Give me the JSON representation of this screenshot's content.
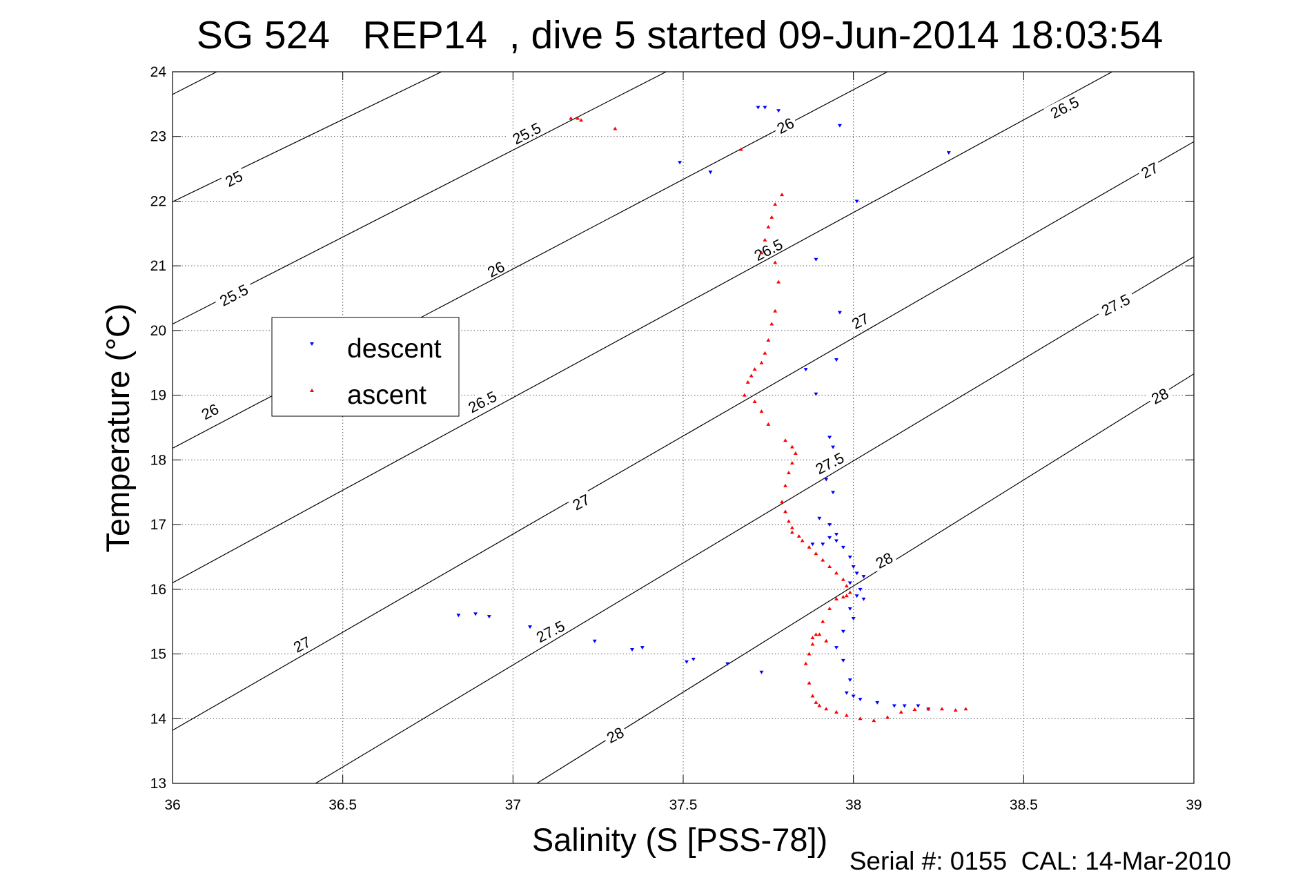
{
  "figure": {
    "title": "SG 524   REP14  , dive 5 started 09-Jun-2014 18:03:54",
    "footer": "Serial #: 0155  CAL: 14-Mar-2010",
    "legend": {
      "descent": "descent",
      "ascent": "ascent"
    }
  },
  "chart_data": {
    "type": "scatter",
    "title": "SG 524   REP14  , dive 5 started 09-Jun-2014 18:03:54",
    "xlabel": "Salinity (S [PSS-78])",
    "ylabel": "Temperature (°C)",
    "xlim": [
      36,
      39
    ],
    "ylim": [
      13,
      24
    ],
    "xticks": [
      36,
      36.5,
      37,
      37.5,
      38,
      38.5,
      39
    ],
    "xtick_labels": [
      "36",
      "36.5",
      "37",
      "37.5",
      "38",
      "38.5",
      "39"
    ],
    "yticks": [
      13,
      14,
      15,
      16,
      17,
      18,
      19,
      20,
      21,
      22,
      23,
      24
    ],
    "ytick_labels": [
      "13",
      "14",
      "15",
      "16",
      "17",
      "18",
      "19",
      "20",
      "21",
      "22",
      "23",
      "24"
    ],
    "grid": true,
    "legend_position": "upper-left",
    "colors": {
      "descent": "#0000ff",
      "ascent": "#ff0000",
      "contour": "#000000"
    },
    "isopycnals": {
      "levels": [
        25,
        25.5,
        26,
        26.5,
        27,
        27.5,
        28
      ],
      "lines": [
        {
          "level": 25,
          "points": [
            [
              36.0,
              23.65
            ],
            [
              36.13,
              24.0
            ]
          ]
        },
        {
          "level": 25.5,
          "points": [
            [
              36.0,
              21.99
            ],
            [
              36.79,
              24.0
            ]
          ]
        },
        {
          "level": 26,
          "points": [
            [
              36.0,
              20.1
            ],
            [
              37.45,
              24.0
            ]
          ]
        },
        {
          "level": 26.5,
          "points": [
            [
              36.0,
              18.18
            ],
            [
              38.1,
              24.0
            ]
          ]
        },
        {
          "level": 27,
          "points": [
            [
              36.0,
              16.1
            ],
            [
              38.76,
              24.0
            ]
          ]
        },
        {
          "level": 27.5,
          "points": [
            [
              36.0,
              13.82
            ],
            [
              39.0,
              22.92
            ]
          ]
        },
        {
          "level": 28,
          "points": [
            [
              36.42,
              13.0
            ],
            [
              39.0,
              21.14
            ]
          ]
        },
        {
          "level": 28,
          "points": [
            [
              37.07,
              13.0
            ],
            [
              39.0,
              19.33
            ]
          ]
        }
      ],
      "labels": [
        {
          "text": "25",
          "x": 36.18,
          "y": 22.35
        },
        {
          "text": "25.5",
          "x": 36.18,
          "y": 20.55
        },
        {
          "text": "26",
          "x": 36.11,
          "y": 18.75
        },
        {
          "text": "27",
          "x": 36.38,
          "y": 15.15
        },
        {
          "text": "25.5",
          "x": 37.04,
          "y": 23.05
        },
        {
          "text": "26",
          "x": 36.95,
          "y": 20.95
        },
        {
          "text": "26.5",
          "x": 36.91,
          "y": 18.9
        },
        {
          "text": "27",
          "x": 37.2,
          "y": 17.35
        },
        {
          "text": "27.5",
          "x": 37.11,
          "y": 15.35
        },
        {
          "text": "28",
          "x": 37.3,
          "y": 13.75
        },
        {
          "text": "26",
          "x": 37.8,
          "y": 23.17
        },
        {
          "text": "26.5",
          "x": 37.75,
          "y": 21.25
        },
        {
          "text": "27",
          "x": 38.02,
          "y": 20.15
        },
        {
          "text": "27.5",
          "x": 37.93,
          "y": 17.95
        },
        {
          "text": "28",
          "x": 38.09,
          "y": 16.45
        },
        {
          "text": "26.5",
          "x": 38.62,
          "y": 23.45
        },
        {
          "text": "27",
          "x": 38.87,
          "y": 22.48
        },
        {
          "text": "27.5",
          "x": 38.77,
          "y": 20.4
        },
        {
          "text": "28",
          "x": 38.9,
          "y": 18.99
        }
      ]
    },
    "series": [
      {
        "name": "descent",
        "marker": "triangle-down",
        "x": [
          37.72,
          37.74,
          37.78,
          37.96,
          37.49,
          37.58,
          38.28,
          38.01,
          37.89,
          37.96,
          37.95,
          37.86,
          37.89,
          37.93,
          37.94,
          37.92,
          37.94,
          37.9,
          37.93,
          37.95,
          37.93,
          37.88,
          37.91,
          37.95,
          37.97,
          37.99,
          38.0,
          38.01,
          38.03,
          37.99,
          38.02,
          38.01,
          38.03,
          37.99,
          38.0,
          37.97,
          37.95,
          37.97,
          37.99,
          37.98,
          38.0,
          38.02,
          38.07,
          38.12,
          38.15,
          38.19,
          38.22,
          36.84,
          36.89,
          36.93,
          37.05,
          37.24,
          37.35,
          37.38,
          37.51,
          37.53,
          37.63,
          37.73
        ],
        "y": [
          23.45,
          23.45,
          23.4,
          23.17,
          22.6,
          22.45,
          22.75,
          22.0,
          21.1,
          20.28,
          19.55,
          19.4,
          19.02,
          18.35,
          18.2,
          17.7,
          17.5,
          17.1,
          17.0,
          16.85,
          16.8,
          16.7,
          16.7,
          16.75,
          16.65,
          16.5,
          16.35,
          16.25,
          16.2,
          16.1,
          16.0,
          15.9,
          15.85,
          15.7,
          15.55,
          15.35,
          15.1,
          14.9,
          14.6,
          14.4,
          14.35,
          14.3,
          14.25,
          14.2,
          14.2,
          14.2,
          14.15,
          15.6,
          15.62,
          15.58,
          15.42,
          15.2,
          15.07,
          15.1,
          14.88,
          14.92,
          14.85,
          14.72
        ]
      },
      {
        "name": "ascent",
        "marker": "triangle-up",
        "x": [
          37.17,
          37.19,
          37.2,
          37.3,
          37.67,
          37.79,
          37.77,
          37.76,
          37.75,
          37.74,
          37.73,
          37.77,
          37.78,
          37.77,
          37.76,
          37.75,
          37.74,
          37.73,
          37.71,
          37.7,
          37.69,
          37.68,
          37.71,
          37.73,
          37.75,
          37.8,
          37.82,
          37.83,
          37.82,
          37.81,
          37.8,
          37.79,
          37.8,
          37.81,
          37.82,
          37.82,
          37.84,
          37.85,
          37.87,
          37.89,
          37.91,
          37.93,
          37.95,
          37.97,
          37.98,
          37.99,
          37.98,
          37.97,
          37.95,
          37.93,
          37.91,
          37.89,
          37.88,
          37.87,
          37.86,
          37.87,
          37.88,
          37.89,
          37.9,
          37.92,
          37.95,
          37.98,
          38.02,
          38.06,
          38.1,
          38.14,
          38.18,
          38.22,
          38.26,
          38.3,
          38.33,
          37.88,
          37.9,
          37.92
        ],
        "y": [
          23.28,
          23.28,
          23.25,
          23.12,
          22.8,
          22.1,
          21.95,
          21.75,
          21.6,
          21.4,
          21.2,
          21.05,
          20.75,
          20.3,
          20.1,
          19.85,
          19.65,
          19.5,
          19.4,
          19.3,
          19.2,
          19.0,
          18.9,
          18.75,
          18.55,
          18.3,
          18.2,
          18.1,
          17.95,
          17.8,
          17.6,
          17.35,
          17.2,
          17.05,
          16.95,
          16.88,
          16.82,
          16.75,
          16.65,
          16.55,
          16.45,
          16.35,
          16.25,
          16.15,
          16.05,
          15.95,
          15.9,
          15.88,
          15.85,
          15.7,
          15.5,
          15.3,
          15.15,
          15.0,
          14.85,
          14.55,
          14.35,
          14.25,
          14.2,
          14.15,
          14.1,
          14.05,
          14.0,
          13.97,
          14.02,
          14.1,
          14.14,
          14.15,
          14.15,
          14.13,
          14.15,
          15.25,
          15.3,
          15.2
        ]
      }
    ]
  }
}
